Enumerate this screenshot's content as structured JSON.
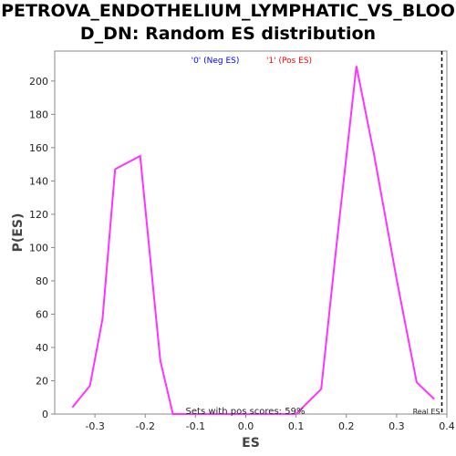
{
  "chart_data": {
    "type": "line",
    "title_line1": "PETROVA_ENDOTHELIUM_LYMPHATIC_VS_BLOO",
    "title_line2": "D_DN: Random ES distribution",
    "xlabel": "ES",
    "ylabel": "P(ES)",
    "xlim": [
      -0.38,
      0.4
    ],
    "ylim": [
      0,
      218
    ],
    "xticks": [
      -0.3,
      -0.2,
      -0.1,
      0.0,
      0.1,
      0.2,
      0.3,
      0.4
    ],
    "xtick_labels": [
      "-0.3",
      "-0.2",
      "-0.1",
      "0.0",
      "0.1",
      "0.2",
      "0.3",
      "0.4"
    ],
    "yticks": [
      0,
      20,
      40,
      60,
      80,
      100,
      120,
      140,
      160,
      180,
      200
    ],
    "ytick_labels": [
      "0",
      "20",
      "40",
      "60",
      "80",
      "100",
      "120",
      "140",
      "160",
      "180",
      "200"
    ],
    "legend": {
      "neg": {
        "label": "'0' (Neg ES)",
        "color": "#0000ff"
      },
      "pos": {
        "label": "'1' (Pos ES)",
        "color": "#ff0000"
      }
    },
    "series": [
      {
        "color": "#ff33ff",
        "x": [
          -0.345,
          -0.31,
          -0.285,
          -0.26,
          -0.21,
          -0.17,
          -0.145,
          -0.12,
          0.1,
          0.15,
          0.18,
          0.22,
          0.255,
          0.3,
          0.34,
          0.375
        ],
        "y": [
          4,
          17,
          57,
          147,
          155,
          32,
          0,
          0,
          0,
          15,
          100,
          209,
          156,
          81,
          19,
          9
        ]
      }
    ],
    "real_es": {
      "x": 0.39,
      "label": "Real ES"
    },
    "annotation": "Sets with pos scores: 59%",
    "grid": false
  }
}
